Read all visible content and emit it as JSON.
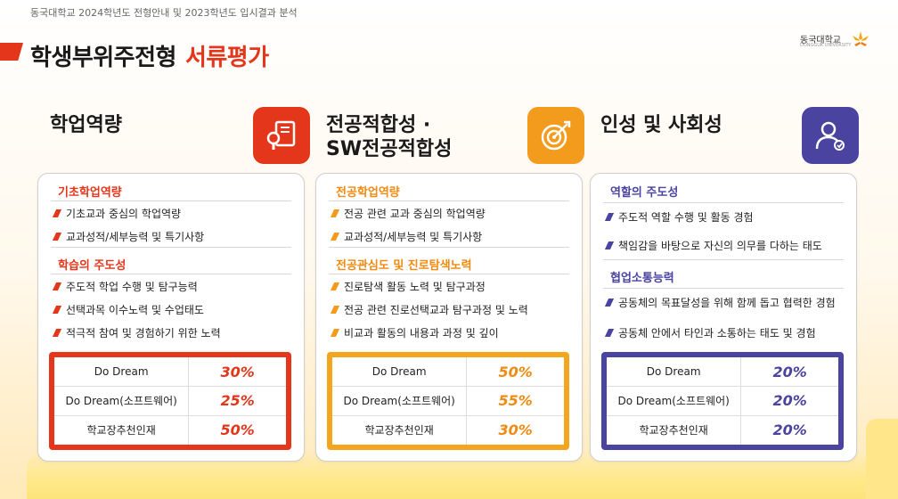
{
  "header": {
    "subtitle": "동국대학교 2024학년도 전형안내 및 2023학년도 입시결과 분석",
    "title_main": "학생부위주전형",
    "title_accent": "서류평가",
    "logo_text": "동국대학교",
    "logo_sub": "DONGGUK UNIVERSITY"
  },
  "colors": {
    "red": "#e4361a",
    "orange": "#f39b1c",
    "purple": "#4a43a0"
  },
  "columns": [
    {
      "heading": "학업역량",
      "icon": "book-magnifier-icon",
      "sections": [
        {
          "title": "기초학업역량",
          "items": [
            "기초교과 중심의 학업역량",
            "교과성적/세부능력 및 특기사항"
          ]
        },
        {
          "title": "학습의 주도성",
          "items": [
            "주도적 학업 수행 및 탐구능력",
            "선택과목 이수노력 및 수업태도",
            "적극적 참여 및 경험하기 위한 노력"
          ]
        }
      ],
      "rates": [
        {
          "label": "Do Dream",
          "value": "30%"
        },
        {
          "label": "Do Dream(소프트웨어)",
          "value": "25%"
        },
        {
          "label": "학교장추천인재",
          "value": "50%"
        }
      ]
    },
    {
      "heading_line1": "전공적합성 ·",
      "heading_line2": "SW전공적합성",
      "icon": "target-arrow-icon",
      "sections": [
        {
          "title": "전공학업역량",
          "items": [
            "전공 관련 교과 중심의 학업역량",
            "교과성적/세부능력 및 특기사항"
          ]
        },
        {
          "title": "전공관심도 및 진로탐색노력",
          "items": [
            "진로탐색 활동 노력 및 탐구과정",
            "전공 관련 진로선택교과 탐구과정 및 노력",
            "비교과 활동의 내용과 과정 및 깊이"
          ]
        }
      ],
      "rates": [
        {
          "label": "Do Dream",
          "value": "50%"
        },
        {
          "label": "Do Dream(소프트웨어)",
          "value": "55%"
        },
        {
          "label": "학교장추천인재",
          "value": "30%"
        }
      ]
    },
    {
      "heading": "인성 및 사회성",
      "icon": "person-check-icon",
      "sections": [
        {
          "title": "역할의 주도성",
          "items": [
            "주도적 역할 수행 및 활동 경험",
            "책임감을 바탕으로 자신의 의무를 다하는 태도"
          ]
        },
        {
          "title": "협업소통능력",
          "items": [
            "공동체의 목표달성을 위해 함께 돕고 협력한 경험",
            "공동체 안에서 타인과 소통하는 태도 및 경험"
          ]
        }
      ],
      "rates": [
        {
          "label": "Do Dream",
          "value": "20%"
        },
        {
          "label": "Do Dream(소프트웨어)",
          "value": "20%"
        },
        {
          "label": "학교장추천인재",
          "value": "20%"
        }
      ]
    }
  ]
}
